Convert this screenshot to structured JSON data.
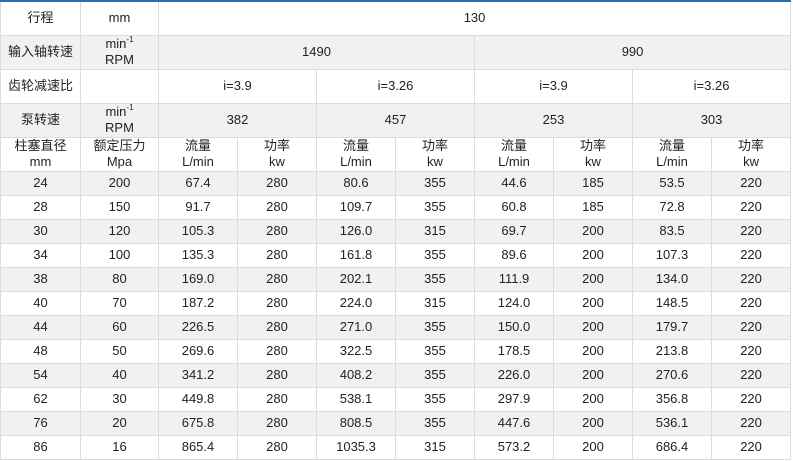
{
  "header": {
    "stroke": {
      "label": "行程",
      "unit": "mm",
      "value": "130"
    },
    "input_speed": {
      "label": "输入轴转速",
      "unit_main": "min",
      "unit_sup": "-1",
      "unit_sub": "RPM",
      "values": [
        "1490",
        "990"
      ]
    },
    "gear_ratio": {
      "label": "齿轮减速比",
      "values": [
        "i=3.9",
        "i=3.26",
        "i=3.9",
        "i=3.26"
      ]
    },
    "pump_speed": {
      "label": "泵转速",
      "unit_main": "min",
      "unit_sup": "-1",
      "unit_sub": "RPM",
      "values": [
        "382",
        "457",
        "253",
        "303"
      ]
    },
    "columns": {
      "diameter": {
        "label": "柱塞直径",
        "unit": "mm"
      },
      "pressure": {
        "label": "额定压力",
        "unit": "Mpa"
      },
      "flow": {
        "label": "流量",
        "unit": "L/min"
      },
      "power": {
        "label": "功率",
        "unit": "kw"
      }
    }
  },
  "rows": [
    [
      "24",
      "200",
      "67.4",
      "280",
      "80.6",
      "355",
      "44.6",
      "185",
      "53.5",
      "220"
    ],
    [
      "28",
      "150",
      "91.7",
      "280",
      "109.7",
      "355",
      "60.8",
      "185",
      "72.8",
      "220"
    ],
    [
      "30",
      "120",
      "105.3",
      "280",
      "126.0",
      "315",
      "69.7",
      "200",
      "83.5",
      "220"
    ],
    [
      "34",
      "100",
      "135.3",
      "280",
      "161.8",
      "355",
      "89.6",
      "200",
      "107.3",
      "220"
    ],
    [
      "38",
      "80",
      "169.0",
      "280",
      "202.1",
      "355",
      "111.9",
      "200",
      "134.0",
      "220"
    ],
    [
      "40",
      "70",
      "187.2",
      "280",
      "224.0",
      "315",
      "124.0",
      "200",
      "148.5",
      "220"
    ],
    [
      "44",
      "60",
      "226.5",
      "280",
      "271.0",
      "355",
      "150.0",
      "200",
      "179.7",
      "220"
    ],
    [
      "48",
      "50",
      "269.6",
      "280",
      "322.5",
      "355",
      "178.5",
      "200",
      "213.8",
      "220"
    ],
    [
      "54",
      "40",
      "341.2",
      "280",
      "408.2",
      "355",
      "226.0",
      "200",
      "270.6",
      "220"
    ],
    [
      "62",
      "30",
      "449.8",
      "280",
      "538.1",
      "355",
      "297.9",
      "200",
      "356.8",
      "220"
    ],
    [
      "76",
      "20",
      "675.8",
      "280",
      "808.5",
      "355",
      "447.6",
      "200",
      "536.1",
      "220"
    ],
    [
      "86",
      "16",
      "865.4",
      "280",
      "1035.3",
      "315",
      "573.2",
      "200",
      "686.4",
      "220"
    ]
  ]
}
